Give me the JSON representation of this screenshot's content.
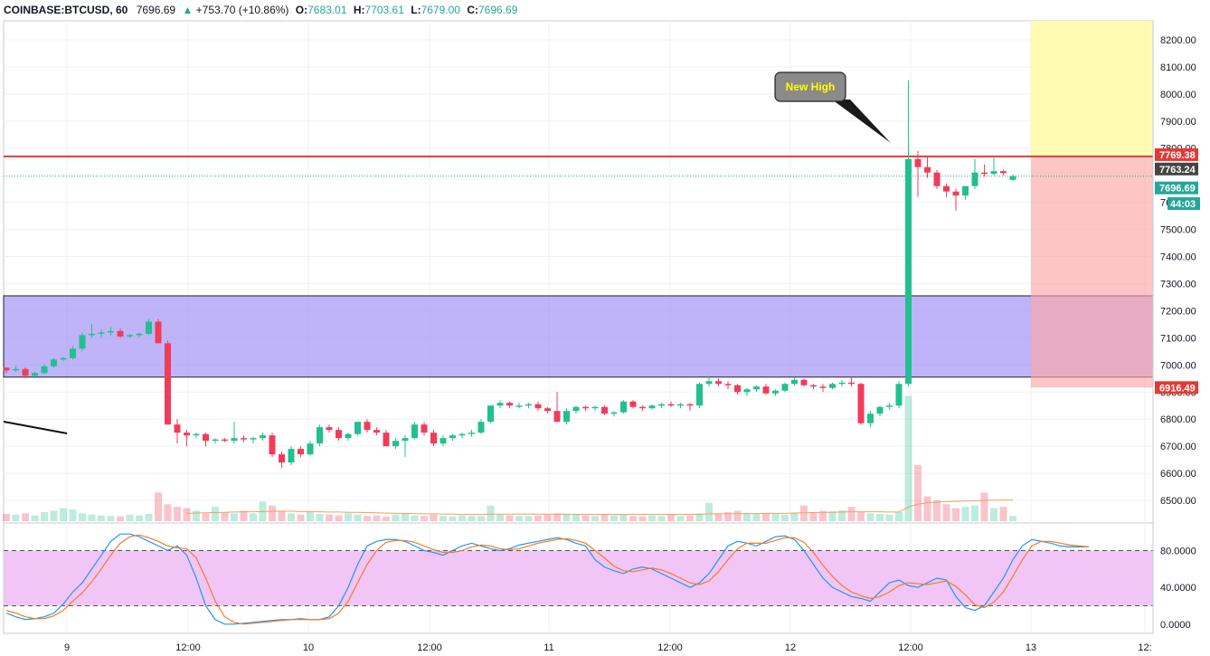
{
  "header": {
    "symbol": "COINBASE:BTCUSD, 60",
    "last": "7696.69",
    "change": "+753.70 (+10.86%)",
    "o_label": "O:",
    "o": "7683.01",
    "h_label": "H:",
    "h": "7703.61",
    "l_label": "L:",
    "l": "7679.00",
    "c_label": "C:",
    "c": "7696.69"
  },
  "colors": {
    "up": "#26a69a",
    "up_candle": "#22c08e",
    "down": "#f03c5a",
    "resistance": "#e53935",
    "zone": "#9c8cf5",
    "rr_target": "#fffaa6",
    "rr_risk": "#fba7a7",
    "oscillator_band": "#f0c0f6",
    "stoch_k": "#2196f3",
    "stoch_d": "#f57c24"
  },
  "chart_data": [
    {
      "type": "candlestick",
      "timeframe": "60",
      "ylim": [
        6420,
        8270
      ],
      "price_ticks": [
        "8200.00",
        "8100.00",
        "8000.00",
        "7900.00",
        "7800.00",
        "7600.00",
        "7500.00",
        "7400.00",
        "7300.00",
        "7200.00",
        "7100.00",
        "7000.00",
        "6900.00",
        "6800.00",
        "6700.00",
        "6600.00",
        "6500.00"
      ],
      "time_labels": [
        "9",
        "12:00",
        "10",
        "12:00",
        "11",
        "12:00",
        "12",
        "12:00",
        "13",
        "12:"
      ],
      "candles": [
        [
          6990,
          6990,
          6970,
          6980
        ],
        [
          6980,
          6995,
          6975,
          6985
        ],
        [
          6985,
          6990,
          6950,
          6960
        ],
        [
          6960,
          6975,
          6950,
          6970
        ],
        [
          6970,
          7005,
          6965,
          6995
        ],
        [
          6995,
          7025,
          6990,
          7020
        ],
        [
          7020,
          7030,
          7015,
          7025
        ],
        [
          7025,
          7070,
          7020,
          7060
        ],
        [
          7060,
          7120,
          7050,
          7110
        ],
        [
          7110,
          7150,
          7100,
          7115
        ],
        [
          7115,
          7130,
          7100,
          7120
        ],
        [
          7120,
          7140,
          7110,
          7125
        ],
        [
          7125,
          7135,
          7100,
          7105
        ],
        [
          7105,
          7115,
          7100,
          7110
        ],
        [
          7110,
          7120,
          7100,
          7115
        ],
        [
          7115,
          7170,
          7110,
          7160
        ],
        [
          7160,
          7170,
          7080,
          7080
        ],
        [
          7080,
          7090,
          6780,
          6780
        ],
        [
          6780,
          6800,
          6710,
          6750
        ],
        [
          6750,
          6760,
          6700,
          6740
        ],
        [
          6740,
          6750,
          6730,
          6745
        ],
        [
          6745,
          6750,
          6700,
          6720
        ],
        [
          6720,
          6730,
          6710,
          6725
        ],
        [
          6725,
          6730,
          6715,
          6720
        ],
        [
          6720,
          6790,
          6710,
          6730
        ],
        [
          6730,
          6740,
          6715,
          6725
        ],
        [
          6725,
          6735,
          6710,
          6730
        ],
        [
          6730,
          6750,
          6720,
          6740
        ],
        [
          6740,
          6750,
          6660,
          6670
        ],
        [
          6670,
          6680,
          6620,
          6640
        ],
        [
          6640,
          6700,
          6630,
          6690
        ],
        [
          6690,
          6700,
          6660,
          6670
        ],
        [
          6670,
          6720,
          6665,
          6710
        ],
        [
          6710,
          6780,
          6700,
          6770
        ],
        [
          6770,
          6780,
          6750,
          6760
        ],
        [
          6760,
          6770,
          6720,
          6730
        ],
        [
          6730,
          6750,
          6720,
          6745
        ],
        [
          6745,
          6790,
          6740,
          6790
        ],
        [
          6790,
          6800,
          6750,
          6760
        ],
        [
          6760,
          6770,
          6740,
          6750
        ],
        [
          6750,
          6760,
          6700,
          6700
        ],
        [
          6700,
          6730,
          6690,
          6720
        ],
        [
          6720,
          6740,
          6660,
          6730
        ],
        [
          6730,
          6790,
          6725,
          6780
        ],
        [
          6780,
          6790,
          6740,
          6750
        ],
        [
          6750,
          6760,
          6700,
          6710
        ],
        [
          6710,
          6740,
          6700,
          6730
        ],
        [
          6730,
          6745,
          6720,
          6740
        ],
        [
          6740,
          6750,
          6730,
          6745
        ],
        [
          6745,
          6760,
          6735,
          6750
        ],
        [
          6750,
          6800,
          6745,
          6790
        ],
        [
          6790,
          6850,
          6785,
          6850
        ],
        [
          6850,
          6870,
          6840,
          6860
        ],
        [
          6860,
          6865,
          6840,
          6850
        ],
        [
          6850,
          6860,
          6840,
          6850
        ],
        [
          6850,
          6860,
          6840,
          6855
        ],
        [
          6855,
          6865,
          6830,
          6840
        ],
        [
          6840,
          6845,
          6820,
          6830
        ],
        [
          6830,
          6900,
          6790,
          6790
        ],
        [
          6790,
          6840,
          6780,
          6830
        ],
        [
          6830,
          6850,
          6820,
          6845
        ],
        [
          6845,
          6850,
          6830,
          6840
        ],
        [
          6840,
          6850,
          6830,
          6845
        ],
        [
          6845,
          6850,
          6815,
          6820
        ],
        [
          6820,
          6830,
          6810,
          6825
        ],
        [
          6825,
          6870,
          6820,
          6865
        ],
        [
          6865,
          6870,
          6840,
          6845
        ],
        [
          6845,
          6850,
          6830,
          6840
        ],
        [
          6840,
          6855,
          6835,
          6850
        ],
        [
          6850,
          6860,
          6840,
          6855
        ],
        [
          6855,
          6865,
          6845,
          6850
        ],
        [
          6850,
          6860,
          6840,
          6855
        ],
        [
          6855,
          6860,
          6830,
          6850
        ],
        [
          6850,
          6935,
          6840,
          6930
        ],
        [
          6930,
          6960,
          6920,
          6940
        ],
        [
          6940,
          6950,
          6920,
          6930
        ],
        [
          6930,
          6940,
          6910,
          6925
        ],
        [
          6925,
          6930,
          6890,
          6900
        ],
        [
          6900,
          6915,
          6885,
          6910
        ],
        [
          6910,
          6925,
          6900,
          6920
        ],
        [
          6920,
          6930,
          6890,
          6895
        ],
        [
          6895,
          6910,
          6885,
          6905
        ],
        [
          6905,
          6935,
          6900,
          6930
        ],
        [
          6930,
          6960,
          6925,
          6945
        ],
        [
          6945,
          6950,
          6920,
          6925
        ],
        [
          6925,
          6930,
          6910,
          6920
        ],
        [
          6920,
          6930,
          6900,
          6915
        ],
        [
          6915,
          6935,
          6910,
          6930
        ],
        [
          6930,
          6945,
          6920,
          6935
        ],
        [
          6935,
          6955,
          6920,
          6930
        ],
        [
          6930,
          6935,
          6780,
          6785
        ],
        [
          6785,
          6830,
          6770,
          6820
        ],
        [
          6820,
          6850,
          6810,
          6845
        ],
        [
          6845,
          6860,
          6835,
          6850
        ],
        [
          6850,
          6940,
          6840,
          6930
        ],
        [
          6930,
          8050,
          6920,
          7760
        ],
        [
          7760,
          7790,
          7620,
          7730
        ],
        [
          7730,
          7770,
          7690,
          7710
        ],
        [
          7710,
          7720,
          7650,
          7660
        ],
        [
          7660,
          7670,
          7620,
          7640
        ],
        [
          7640,
          7650,
          7570,
          7625
        ],
        [
          7625,
          7660,
          7610,
          7660
        ],
        [
          7660,
          7760,
          7650,
          7710
        ],
        [
          7710,
          7740,
          7695,
          7705
        ],
        [
          7705,
          7765,
          7700,
          7715
        ],
        [
          7715,
          7720,
          7700,
          7708
        ],
        [
          7683.01,
          7703.61,
          7679,
          7696.69
        ]
      ],
      "volumes": [
        28,
        25,
        30,
        22,
        35,
        40,
        50,
        45,
        30,
        25,
        22,
        20,
        18,
        25,
        22,
        28,
        110,
        65,
        55,
        50,
        40,
        30,
        55,
        35,
        30,
        40,
        30,
        75,
        60,
        40,
        30,
        25,
        35,
        28,
        25,
        22,
        30,
        25,
        20,
        22,
        18,
        25,
        30,
        22,
        20,
        25,
        20,
        18,
        22,
        20,
        20,
        60,
        25,
        22,
        20,
        20,
        22,
        25,
        30,
        28,
        25,
        22,
        20,
        25,
        22,
        25,
        20,
        18,
        22,
        20,
        25,
        20,
        22,
        30,
        70,
        30,
        35,
        40,
        32,
        28,
        30,
        28,
        25,
        30,
        60,
        35,
        40,
        38,
        42,
        55,
        35,
        30,
        28,
        25,
        35,
        480,
        215,
        95,
        80,
        65,
        50,
        55,
        60,
        110,
        50,
        55,
        20
      ],
      "volume_ma": [
        null,
        null,
        null,
        null,
        null,
        null,
        null,
        null,
        null,
        null,
        null,
        null,
        null,
        null,
        null,
        null,
        null,
        null,
        null,
        30,
        31,
        32,
        33,
        34,
        35,
        36,
        36,
        37,
        38,
        38,
        38,
        37,
        37,
        36,
        35,
        35,
        34,
        34,
        33,
        32,
        31,
        30,
        30,
        29,
        28,
        28,
        27,
        27,
        26,
        26,
        26,
        27,
        27,
        27,
        27,
        27,
        27,
        27,
        27,
        27,
        26,
        26,
        26,
        26,
        26,
        26,
        26,
        26,
        26,
        26,
        26,
        26,
        26,
        26,
        28,
        28,
        28,
        29,
        29,
        29,
        30,
        30,
        30,
        31,
        32,
        33,
        34,
        34,
        35,
        36,
        36,
        36,
        36,
        35,
        35,
        55,
        65,
        70,
        73,
        75,
        76,
        77,
        78,
        80,
        80,
        81,
        81
      ],
      "annotations": [
        {
          "type": "callout",
          "text": "New High"
        },
        {
          "type": "price_label",
          "price": 7769.38,
          "text": "7769.38"
        },
        {
          "type": "price_label",
          "price": 7763.24,
          "text": "7763.24"
        },
        {
          "type": "price_label",
          "price": 7696.69,
          "text": "7696.69"
        },
        {
          "type": "countdown",
          "text": "44:03"
        },
        {
          "type": "price_label",
          "price": 6916.49,
          "text": "6916.49"
        },
        {
          "type": "zone",
          "from": 6955,
          "to": 7255
        },
        {
          "type": "horizontal_line",
          "price": 7769.38
        },
        {
          "type": "position",
          "entry": 7769.38,
          "target": 8270,
          "stop": 6916.49
        }
      ]
    },
    {
      "type": "line",
      "name": "stochastic",
      "ylim": [
        -10,
        108
      ],
      "ticks": [
        "80.0000",
        "40.0000",
        "0.0000"
      ],
      "bands": [
        20,
        80
      ],
      "k": [
        12,
        8,
        5,
        6,
        8,
        12,
        22,
        35,
        45,
        60,
        75,
        90,
        98,
        98,
        95,
        90,
        85,
        80,
        85,
        75,
        50,
        20,
        5,
        0,
        0,
        1,
        2,
        3,
        4,
        5,
        5,
        6,
        5,
        5,
        8,
        20,
        40,
        65,
        85,
        90,
        92,
        92,
        90,
        85,
        80,
        78,
        75,
        80,
        85,
        88,
        85,
        82,
        80,
        82,
        86,
        88,
        90,
        92,
        94,
        92,
        88,
        85,
        70,
        62,
        58,
        55,
        60,
        62,
        60,
        55,
        50,
        45,
        40,
        45,
        55,
        70,
        85,
        90,
        88,
        85,
        90,
        95,
        96,
        92,
        80,
        65,
        50,
        40,
        35,
        30,
        28,
        25,
        35,
        45,
        48,
        42,
        40,
        45,
        50,
        48,
        30,
        18,
        15,
        20,
        35,
        50,
        70,
        85,
        92,
        90,
        88,
        85,
        84,
        84,
        84
      ],
      "d": [
        15,
        12,
        8,
        6,
        6,
        9,
        15,
        25,
        34,
        46,
        60,
        75,
        88,
        95,
        97,
        94,
        90,
        85,
        83,
        82,
        72,
        50,
        25,
        8,
        2,
        0,
        1,
        2,
        3,
        4,
        5,
        5,
        5,
        5,
        6,
        12,
        25,
        45,
        65,
        80,
        89,
        91,
        91,
        89,
        85,
        81,
        78,
        78,
        80,
        84,
        86,
        85,
        82,
        81,
        82,
        85,
        88,
        90,
        92,
        93,
        91,
        88,
        80,
        72,
        63,
        58,
        57,
        59,
        61,
        59,
        55,
        50,
        45,
        43,
        47,
        57,
        70,
        82,
        88,
        88,
        88,
        91,
        94,
        94,
        89,
        78,
        64,
        52,
        42,
        35,
        31,
        28,
        30,
        35,
        42,
        45,
        44,
        43,
        45,
        47,
        41,
        32,
        21,
        18,
        24,
        35,
        52,
        70,
        85,
        90,
        90,
        88,
        86,
        85,
        84
      ]
    }
  ]
}
